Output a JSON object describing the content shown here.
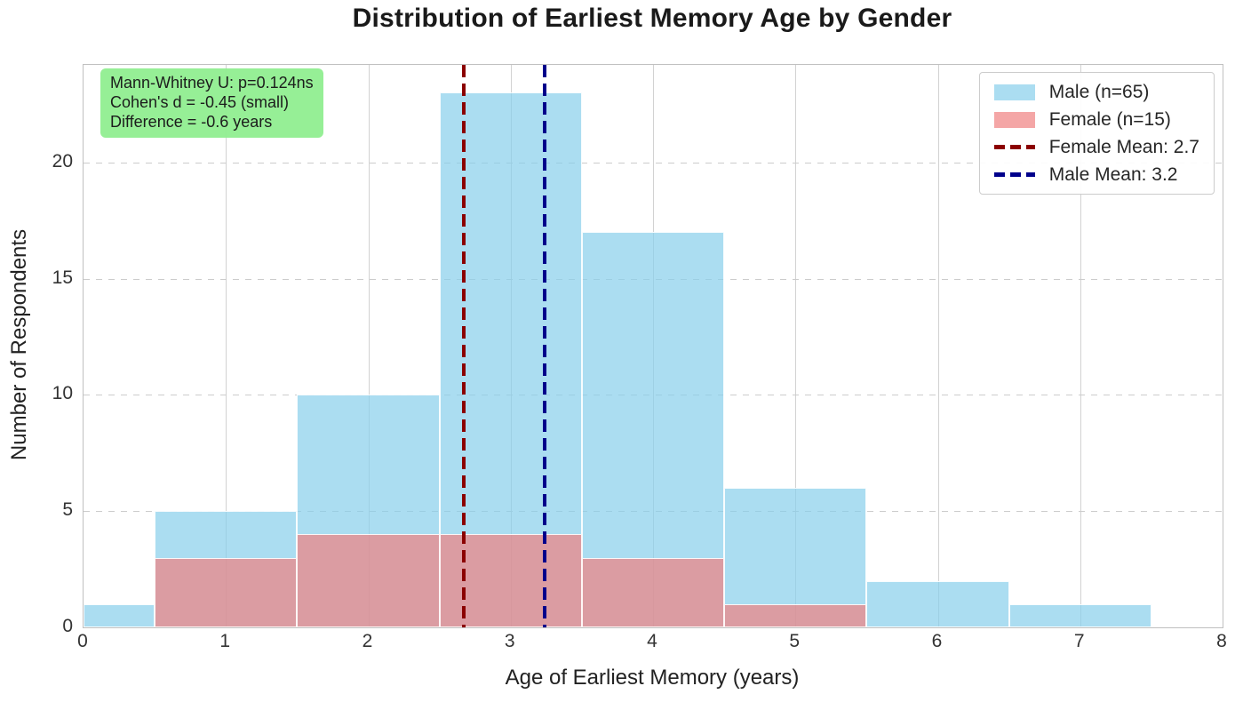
{
  "chart_data": {
    "type": "bar",
    "subtype": "overlaid-histogram",
    "title": "Distribution of Earliest Memory Age by Gender",
    "xlabel": "Age of Earliest Memory (years)",
    "ylabel": "Number of Respondents",
    "xlim": [
      0,
      8
    ],
    "ylim": [
      0,
      24.2
    ],
    "x_ticks": [
      0,
      1,
      2,
      3,
      4,
      5,
      6,
      7,
      8
    ],
    "y_ticks": [
      0,
      5,
      10,
      15,
      20
    ],
    "grid": {
      "vertical_style": "solid",
      "horizontal_style": "dashed",
      "color": "#CCCCCC"
    },
    "series": [
      {
        "name": "Male (n=65)",
        "total": 65,
        "color": "#87CEEB",
        "alpha": 0.7,
        "bins": [
          {
            "x0": 0.0,
            "x1": 0.5,
            "count": 1
          },
          {
            "x0": 0.5,
            "x1": 1.5,
            "count": 5
          },
          {
            "x0": 1.5,
            "x1": 2.5,
            "count": 10
          },
          {
            "x0": 2.5,
            "x1": 3.5,
            "count": 23
          },
          {
            "x0": 3.5,
            "x1": 4.5,
            "count": 17
          },
          {
            "x0": 4.5,
            "x1": 5.5,
            "count": 6
          },
          {
            "x0": 5.5,
            "x1": 6.5,
            "count": 2
          },
          {
            "x0": 6.5,
            "x1": 7.5,
            "count": 1
          }
        ]
      },
      {
        "name": "Female (n=15)",
        "total": 15,
        "color": "#F08080",
        "alpha": 0.7,
        "bins": [
          {
            "x0": 0.5,
            "x1": 1.5,
            "count": 3
          },
          {
            "x0": 1.5,
            "x1": 2.5,
            "count": 4
          },
          {
            "x0": 2.5,
            "x1": 3.5,
            "count": 4
          },
          {
            "x0": 3.5,
            "x1": 4.5,
            "count": 3
          },
          {
            "x0": 4.5,
            "x1": 5.5,
            "count": 1
          }
        ]
      }
    ],
    "mean_lines": [
      {
        "name": "female-mean",
        "label": "Female Mean: 2.7",
        "value": 2.7,
        "x": 2.67,
        "color": "#8B0000",
        "style": "dashed"
      },
      {
        "name": "male-mean",
        "label": "Male Mean: 3.2",
        "value": 3.2,
        "x": 3.24,
        "color": "#00008B",
        "style": "dashed"
      }
    ],
    "annotation": {
      "bg_color": "#90EE90",
      "lines": [
        "Mann-Whitney U: p=0.124ns",
        "Cohen's d = -0.45 (small)",
        "Difference = -0.6 years"
      ]
    },
    "legend_position": "upper right"
  }
}
